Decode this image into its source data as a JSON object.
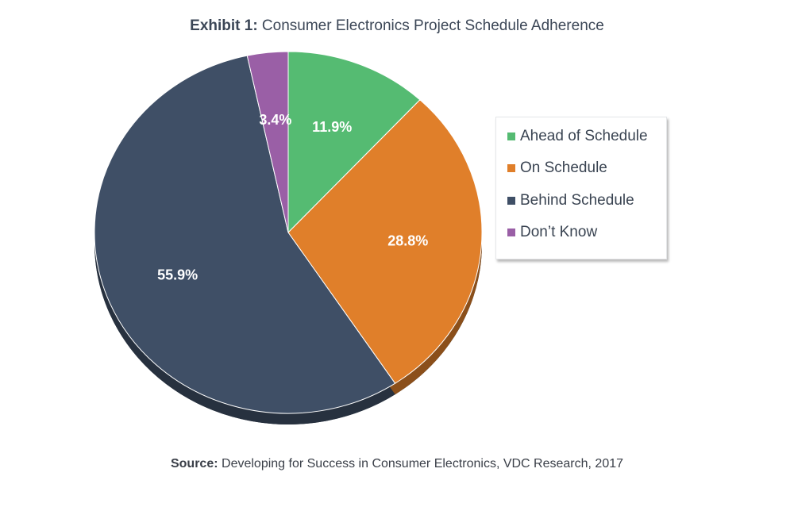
{
  "header": {
    "title_prefix": "Exhibit 1:",
    "title_text": " Consumer Electronics Project Schedule Adherence"
  },
  "chart_data": {
    "type": "pie",
    "title": "Consumer Electronics Project Schedule Adherence",
    "start_angle_deg": 0,
    "direction": "clockwise",
    "legend_position": "right",
    "slices": [
      {
        "label": "Ahead of Schedule",
        "value": 11.9,
        "display": "11.9%",
        "color": "#55bb72"
      },
      {
        "label": "On Schedule",
        "value": 28.8,
        "display": "28.8%",
        "color": "#e07f2a"
      },
      {
        "label": "Behind Schedule",
        "value": 55.9,
        "display": "55.9%",
        "color": "#3f4f66"
      },
      {
        "label": "Don’t Know",
        "value": 3.4,
        "display": "3.4%",
        "color": "#9a5fa6"
      }
    ]
  },
  "legend": {
    "items": [
      "Ahead of Schedule",
      "On Schedule",
      "Behind Schedule",
      "Don’t Know"
    ]
  },
  "footer": {
    "source_prefix": "Source:",
    "source_text": " Developing for Success in Consumer Electronics, VDC Research, 2017"
  }
}
